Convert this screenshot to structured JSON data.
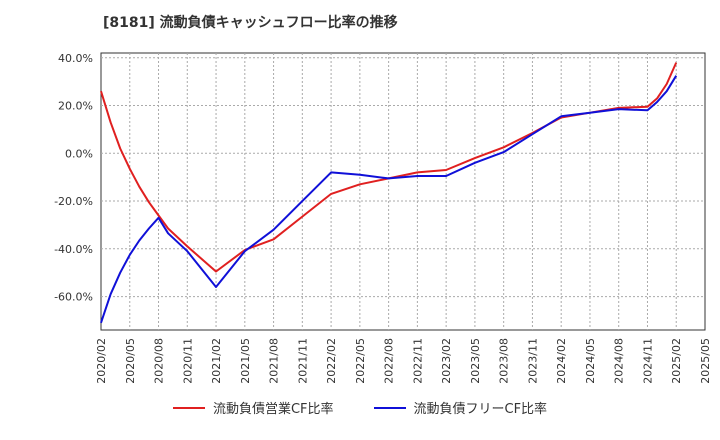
{
  "chart_data": {
    "type": "line",
    "title": "[8181]  流動負債キャッシュフロー比率の推移",
    "xlabel": "",
    "ylabel": "",
    "x_ticks": [
      "2020/02",
      "2020/05",
      "2020/08",
      "2020/11",
      "2021/02",
      "2021/05",
      "2021/08",
      "2021/11",
      "2022/02",
      "2022/05",
      "2022/08",
      "2022/11",
      "2023/02",
      "2023/05",
      "2023/08",
      "2023/11",
      "2024/02",
      "2024/05",
      "2024/08",
      "2024/11",
      "2025/02",
      "2025/05"
    ],
    "y_ticks": [
      40,
      20,
      0,
      -20,
      -40,
      -60
    ],
    "y_tick_labels": [
      "40.0%",
      "20.0%",
      "0.0%",
      "-20.0%",
      "-40.0%",
      "-60.0%"
    ],
    "ylim": [
      -74,
      42
    ],
    "grid": true,
    "legend_position": "bottom",
    "series": [
      {
        "name": "流動負債営業CF比率",
        "color": "#e02020",
        "points": [
          [
            "2020/02",
            26
          ],
          [
            "2020/03",
            13
          ],
          [
            "2020/04",
            2
          ],
          [
            "2020/05",
            -6.5
          ],
          [
            "2020/06",
            -14
          ],
          [
            "2020/07",
            -20.5
          ],
          [
            "2020/08",
            -26
          ],
          [
            "2020/09",
            -31.5
          ],
          [
            "2020/11",
            -39
          ],
          [
            "2021/02",
            -49.5
          ],
          [
            "2021/05",
            -40.5
          ],
          [
            "2021/08",
            -36
          ],
          [
            "2021/11",
            -26.5
          ],
          [
            "2022/02",
            -17
          ],
          [
            "2022/05",
            -13
          ],
          [
            "2022/08",
            -10.5
          ],
          [
            "2022/11",
            -8
          ],
          [
            "2023/02",
            -7
          ],
          [
            "2023/05",
            -2
          ],
          [
            "2023/08",
            2.5
          ],
          [
            "2023/11",
            8.5
          ],
          [
            "2024/02",
            15
          ],
          [
            "2024/05",
            17
          ],
          [
            "2024/08",
            19
          ],
          [
            "2024/11",
            19.5
          ],
          [
            "2024/12",
            23
          ],
          [
            "2025/01",
            29
          ],
          [
            "2025/02",
            38
          ]
        ]
      },
      {
        "name": "流動負債フリーCF比率",
        "color": "#1010d8",
        "points": [
          [
            "2020/02",
            -71
          ],
          [
            "2020/03",
            -59
          ],
          [
            "2020/04",
            -50
          ],
          [
            "2020/05",
            -42.5
          ],
          [
            "2020/06",
            -36.5
          ],
          [
            "2020/07",
            -31.5
          ],
          [
            "2020/08",
            -27
          ],
          [
            "2020/09",
            -33.5
          ],
          [
            "2020/11",
            -41
          ],
          [
            "2021/02",
            -56
          ],
          [
            "2021/05",
            -41
          ],
          [
            "2021/08",
            -32
          ],
          [
            "2021/11",
            -20
          ],
          [
            "2022/02",
            -8
          ],
          [
            "2022/05",
            -9
          ],
          [
            "2022/08",
            -10.5
          ],
          [
            "2022/11",
            -9.5
          ],
          [
            "2023/02",
            -9.5
          ],
          [
            "2023/05",
            -4
          ],
          [
            "2023/08",
            0.5
          ],
          [
            "2023/11",
            8
          ],
          [
            "2024/02",
            15.5
          ],
          [
            "2024/05",
            17
          ],
          [
            "2024/08",
            18.5
          ],
          [
            "2024/11",
            18
          ],
          [
            "2024/12",
            21.5
          ],
          [
            "2025/01",
            26
          ],
          [
            "2025/02",
            32.5
          ]
        ]
      }
    ]
  }
}
